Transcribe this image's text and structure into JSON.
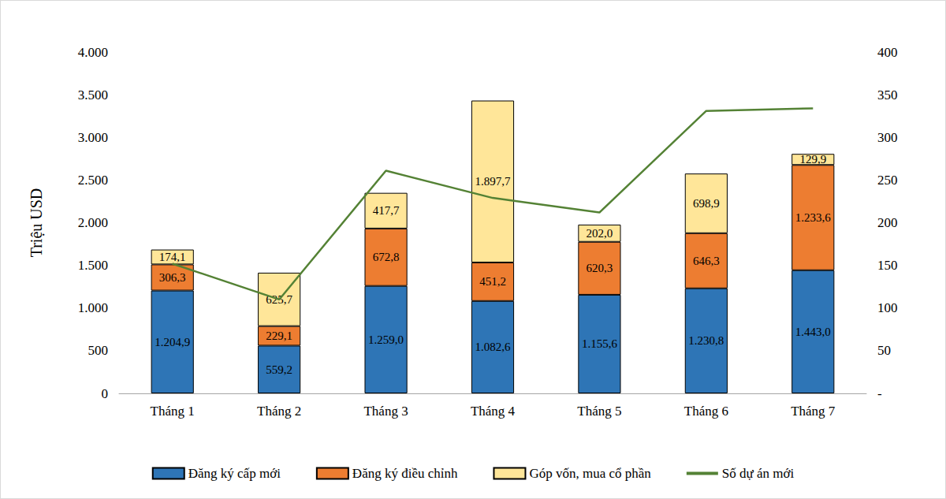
{
  "chart_data": {
    "type": "bar",
    "stacked": true,
    "grid": false,
    "legend": "bottom",
    "y_label": "Triệu USD",
    "categories": [
      "Tháng 1",
      "Tháng 2",
      "Tháng 3",
      "Tháng 4",
      "Tháng 5",
      "Tháng 6",
      "Tháng 7"
    ],
    "ylim": [
      0,
      4000
    ],
    "yticks": [
      0,
      500,
      {
        "value": 1000,
        "label": "1.000"
      },
      {
        "value": 1500,
        "label": "1.500"
      },
      {
        "value": 2000,
        "label": "2.000"
      },
      {
        "value": 2500,
        "label": "2.500"
      },
      {
        "value": 3000,
        "label": "3.000"
      },
      {
        "value": 3500,
        "label": "3.500"
      },
      {
        "value": 4000,
        "label": "4.000"
      }
    ],
    "y2lim": [
      0,
      400
    ],
    "y2ticks": [
      {
        "value": 0,
        "label": "-"
      },
      50,
      100,
      150,
      200,
      250,
      300,
      350,
      400
    ],
    "series": [
      {
        "name": "Đăng ký cấp mới",
        "type": "bar",
        "color": "#2e75b6",
        "data_labels": true,
        "values": [
          1204.9,
          559.2,
          1259.0,
          1082.6,
          1155.6,
          1230.8,
          1443.0
        ],
        "value_labels": [
          "1.204,9",
          "559,2",
          "1.259,0",
          "1.082,6",
          "1.155,6",
          "1.230,8",
          "1.443,0"
        ]
      },
      {
        "name": "Đăng ký điều chỉnh",
        "type": "bar",
        "color": "#ed7d31",
        "data_labels": true,
        "values": [
          306.3,
          229.1,
          672.8,
          451.2,
          620.3,
          646.3,
          1233.6
        ],
        "value_labels": [
          "306,3",
          "229,1",
          "672,8",
          "451,2",
          "620,3",
          "646,3",
          "1.233,6"
        ]
      },
      {
        "name": "Góp vốn, mua cổ phần",
        "type": "bar",
        "color": "#ffe699",
        "data_labels": true,
        "values": [
          174.1,
          625.7,
          417.7,
          1897.7,
          202.0,
          698.9,
          129.9
        ],
        "value_labels": [
          "174,1",
          "625,7",
          "417,7",
          "1.897,7",
          "202,0",
          "698,9",
          "129,9"
        ]
      },
      {
        "name": "Số dự án mới",
        "type": "line",
        "axis": "y2",
        "color": "#548235",
        "marker": "none",
        "line_style": "solid",
        "values": [
          152,
          110,
          261,
          229,
          212,
          331,
          334
        ]
      }
    ]
  }
}
